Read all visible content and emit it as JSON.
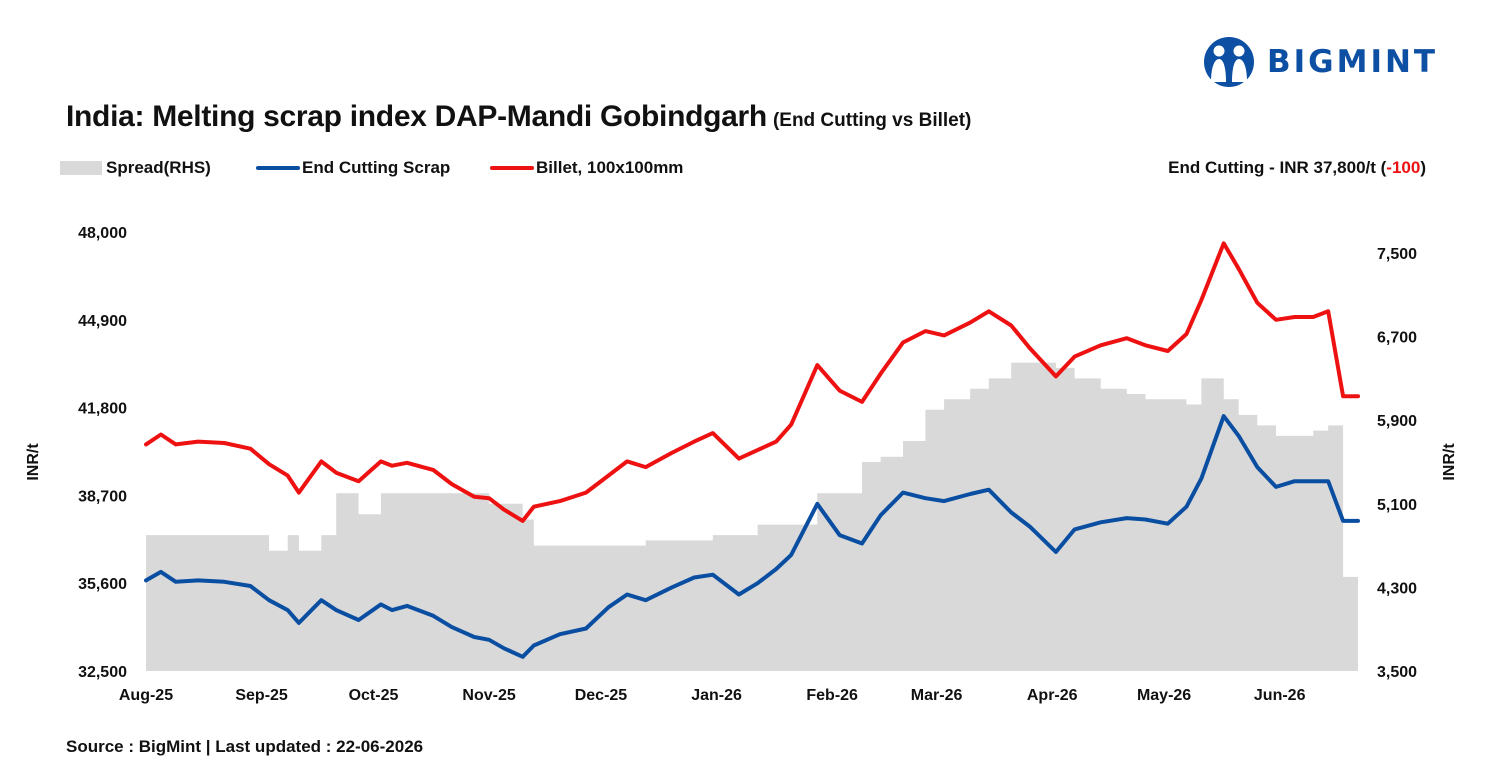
{
  "brand": {
    "name": "BIGMINT",
    "color": "#0d4fa3",
    "icon": "people-logo-icon"
  },
  "header": {
    "title": "India: Melting scrap index DAP-Mandi Gobindgarh",
    "subtitle": "(End Cutting vs Billet)"
  },
  "legend": {
    "spread": "Spread(RHS)",
    "scrap": "End Cutting Scrap",
    "billet": "Billet, 100x100mm"
  },
  "note": {
    "prefix": "End Cutting - INR 37,800/t (",
    "delta": "-100",
    "suffix": ")"
  },
  "footer": {
    "source": "Source : BigMint | Last updated : 22-06-2026"
  },
  "chart_data": {
    "type": "line",
    "x_start": "2025-08-01",
    "x_end": "2026-06-22",
    "xticks": [
      "Aug-25",
      "Sep-25",
      "Oct-25",
      "Nov-25",
      "Dec-25",
      "Jan-26",
      "Feb-26",
      "Mar-26",
      "Apr-26",
      "May-26",
      "Jun-26"
    ],
    "y_left": {
      "label": "INR/t",
      "ylim": [
        32500,
        48000
      ],
      "ticks": [
        "32,500",
        "35,600",
        "38,700",
        "41,800",
        "44,900",
        "48,000"
      ]
    },
    "y_right": {
      "label": "INR/t",
      "ylim": [
        3500,
        7700
      ],
      "ticks": [
        "3,500",
        "4,300",
        "5,100",
        "5,900",
        "6,700",
        "7,500"
      ]
    },
    "colors": {
      "spread": "#d9d9d9",
      "scrap": "#0a4ea2",
      "billet": "#ee1111"
    },
    "series": [
      {
        "name": "End Cutting Scrap",
        "axis": "left",
        "values": [
          [
            "2025-08-01",
            35700
          ],
          [
            "2025-08-05",
            36000
          ],
          [
            "2025-08-09",
            35650
          ],
          [
            "2025-08-15",
            35700
          ],
          [
            "2025-08-22",
            35650
          ],
          [
            "2025-08-29",
            35500
          ],
          [
            "2025-09-03",
            35000
          ],
          [
            "2025-09-08",
            34650
          ],
          [
            "2025-09-11",
            34200
          ],
          [
            "2025-09-17",
            35000
          ],
          [
            "2025-09-21",
            34650
          ],
          [
            "2025-09-27",
            34300
          ],
          [
            "2025-10-03",
            34850
          ],
          [
            "2025-10-06",
            34650
          ],
          [
            "2025-10-10",
            34800
          ],
          [
            "2025-10-17",
            34450
          ],
          [
            "2025-10-22",
            34050
          ],
          [
            "2025-10-28",
            33700
          ],
          [
            "2025-11-01",
            33600
          ],
          [
            "2025-11-05",
            33300
          ],
          [
            "2025-11-10",
            33000
          ],
          [
            "2025-11-13",
            33400
          ],
          [
            "2025-11-20",
            33800
          ],
          [
            "2025-11-27",
            34000
          ],
          [
            "2025-12-03",
            34750
          ],
          [
            "2025-12-08",
            35200
          ],
          [
            "2025-12-13",
            35000
          ],
          [
            "2025-12-20",
            35450
          ],
          [
            "2025-12-26",
            35800
          ],
          [
            "2025-12-31",
            35900
          ],
          [
            "2026-01-07",
            35200
          ],
          [
            "2026-01-12",
            35600
          ],
          [
            "2026-01-17",
            36100
          ],
          [
            "2026-01-21",
            36600
          ],
          [
            "2026-01-28",
            38400
          ],
          [
            "2026-02-03",
            37300
          ],
          [
            "2026-02-09",
            37000
          ],
          [
            "2026-02-14",
            38000
          ],
          [
            "2026-02-20",
            38800
          ],
          [
            "2026-02-26",
            38600
          ],
          [
            "2026-03-03",
            38500
          ],
          [
            "2026-03-10",
            38750
          ],
          [
            "2026-03-15",
            38900
          ],
          [
            "2026-03-21",
            38100
          ],
          [
            "2026-03-26",
            37600
          ],
          [
            "2026-04-02",
            36700
          ],
          [
            "2026-04-07",
            37500
          ],
          [
            "2026-04-14",
            37750
          ],
          [
            "2026-04-21",
            37900
          ],
          [
            "2026-04-26",
            37850
          ],
          [
            "2026-05-02",
            37700
          ],
          [
            "2026-05-07",
            38300
          ],
          [
            "2026-05-11",
            39300
          ],
          [
            "2026-05-17",
            41500
          ],
          [
            "2026-05-21",
            40800
          ],
          [
            "2026-05-26",
            39700
          ],
          [
            "2026-05-31",
            39000
          ],
          [
            "2026-06-05",
            39200
          ],
          [
            "2026-06-10",
            39200
          ],
          [
            "2026-06-14",
            39200
          ],
          [
            "2026-06-18",
            37800
          ],
          [
            "2026-06-22",
            37800
          ]
        ]
      },
      {
        "name": "Billet, 100x100mm",
        "axis": "left",
        "values": [
          [
            "2025-08-01",
            40500
          ],
          [
            "2025-08-05",
            40850
          ],
          [
            "2025-08-09",
            40500
          ],
          [
            "2025-08-15",
            40600
          ],
          [
            "2025-08-22",
            40550
          ],
          [
            "2025-08-29",
            40350
          ],
          [
            "2025-09-03",
            39800
          ],
          [
            "2025-09-08",
            39400
          ],
          [
            "2025-09-11",
            38800
          ],
          [
            "2025-09-17",
            39900
          ],
          [
            "2025-09-21",
            39500
          ],
          [
            "2025-09-27",
            39200
          ],
          [
            "2025-10-03",
            39900
          ],
          [
            "2025-10-06",
            39750
          ],
          [
            "2025-10-10",
            39850
          ],
          [
            "2025-10-17",
            39600
          ],
          [
            "2025-10-22",
            39100
          ],
          [
            "2025-10-28",
            38650
          ],
          [
            "2025-11-01",
            38600
          ],
          [
            "2025-11-05",
            38200
          ],
          [
            "2025-11-10",
            37800
          ],
          [
            "2025-11-13",
            38300
          ],
          [
            "2025-11-20",
            38500
          ],
          [
            "2025-11-27",
            38800
          ],
          [
            "2025-12-03",
            39400
          ],
          [
            "2025-12-08",
            39900
          ],
          [
            "2025-12-13",
            39700
          ],
          [
            "2025-12-20",
            40200
          ],
          [
            "2025-12-26",
            40600
          ],
          [
            "2025-12-31",
            40900
          ],
          [
            "2026-01-07",
            40000
          ],
          [
            "2026-01-12",
            40300
          ],
          [
            "2026-01-17",
            40600
          ],
          [
            "2026-01-21",
            41200
          ],
          [
            "2026-01-28",
            43300
          ],
          [
            "2026-02-03",
            42400
          ],
          [
            "2026-02-09",
            42000
          ],
          [
            "2026-02-14",
            43000
          ],
          [
            "2026-02-20",
            44100
          ],
          [
            "2026-02-26",
            44500
          ],
          [
            "2026-03-03",
            44350
          ],
          [
            "2026-03-10",
            44800
          ],
          [
            "2026-03-15",
            45200
          ],
          [
            "2026-03-21",
            44700
          ],
          [
            "2026-03-26",
            43900
          ],
          [
            "2026-04-02",
            42900
          ],
          [
            "2026-04-07",
            43600
          ],
          [
            "2026-04-14",
            44000
          ],
          [
            "2026-04-21",
            44250
          ],
          [
            "2026-04-26",
            44000
          ],
          [
            "2026-05-02",
            43800
          ],
          [
            "2026-05-07",
            44400
          ],
          [
            "2026-05-11",
            45600
          ],
          [
            "2026-05-17",
            47600
          ],
          [
            "2026-05-21",
            46700
          ],
          [
            "2026-05-26",
            45500
          ],
          [
            "2026-05-31",
            44900
          ],
          [
            "2026-06-05",
            45000
          ],
          [
            "2026-06-10",
            45000
          ],
          [
            "2026-06-14",
            45200
          ],
          [
            "2026-06-18",
            42200
          ],
          [
            "2026-06-22",
            42200
          ]
        ]
      },
      {
        "name": "Spread(RHS)",
        "axis": "right",
        "values": [
          [
            "2025-08-01",
            4800
          ],
          [
            "2025-08-29",
            4800
          ],
          [
            "2025-09-03",
            4650
          ],
          [
            "2025-09-08",
            4800
          ],
          [
            "2025-09-11",
            4650
          ],
          [
            "2025-09-17",
            4800
          ],
          [
            "2025-09-21",
            5200
          ],
          [
            "2025-09-27",
            5000
          ],
          [
            "2025-10-03",
            5200
          ],
          [
            "2025-10-28",
            5200
          ],
          [
            "2025-11-01",
            5100
          ],
          [
            "2025-11-10",
            4950
          ],
          [
            "2025-11-13",
            4700
          ],
          [
            "2025-12-03",
            4700
          ],
          [
            "2025-12-13",
            4750
          ],
          [
            "2025-12-31",
            4800
          ],
          [
            "2026-01-07",
            4800
          ],
          [
            "2026-01-12",
            4900
          ],
          [
            "2026-01-21",
            4900
          ],
          [
            "2026-01-28",
            5200
          ],
          [
            "2026-02-03",
            5200
          ],
          [
            "2026-02-09",
            5500
          ],
          [
            "2026-02-14",
            5550
          ],
          [
            "2026-02-20",
            5700
          ],
          [
            "2026-02-26",
            6000
          ],
          [
            "2026-03-03",
            6100
          ],
          [
            "2026-03-10",
            6200
          ],
          [
            "2026-03-15",
            6300
          ],
          [
            "2026-03-21",
            6450
          ],
          [
            "2026-03-26",
            6450
          ],
          [
            "2026-04-02",
            6400
          ],
          [
            "2026-04-07",
            6300
          ],
          [
            "2026-04-14",
            6200
          ],
          [
            "2026-04-21",
            6150
          ],
          [
            "2026-04-26",
            6100
          ],
          [
            "2026-05-02",
            6100
          ],
          [
            "2026-05-07",
            6050
          ],
          [
            "2026-05-11",
            6300
          ],
          [
            "2026-05-17",
            6100
          ],
          [
            "2026-05-21",
            5950
          ],
          [
            "2026-05-26",
            5850
          ],
          [
            "2026-05-31",
            5750
          ],
          [
            "2026-06-05",
            5750
          ],
          [
            "2026-06-10",
            5800
          ],
          [
            "2026-06-14",
            5850
          ],
          [
            "2026-06-18",
            4400
          ],
          [
            "2026-06-22",
            4400
          ]
        ]
      }
    ]
  }
}
